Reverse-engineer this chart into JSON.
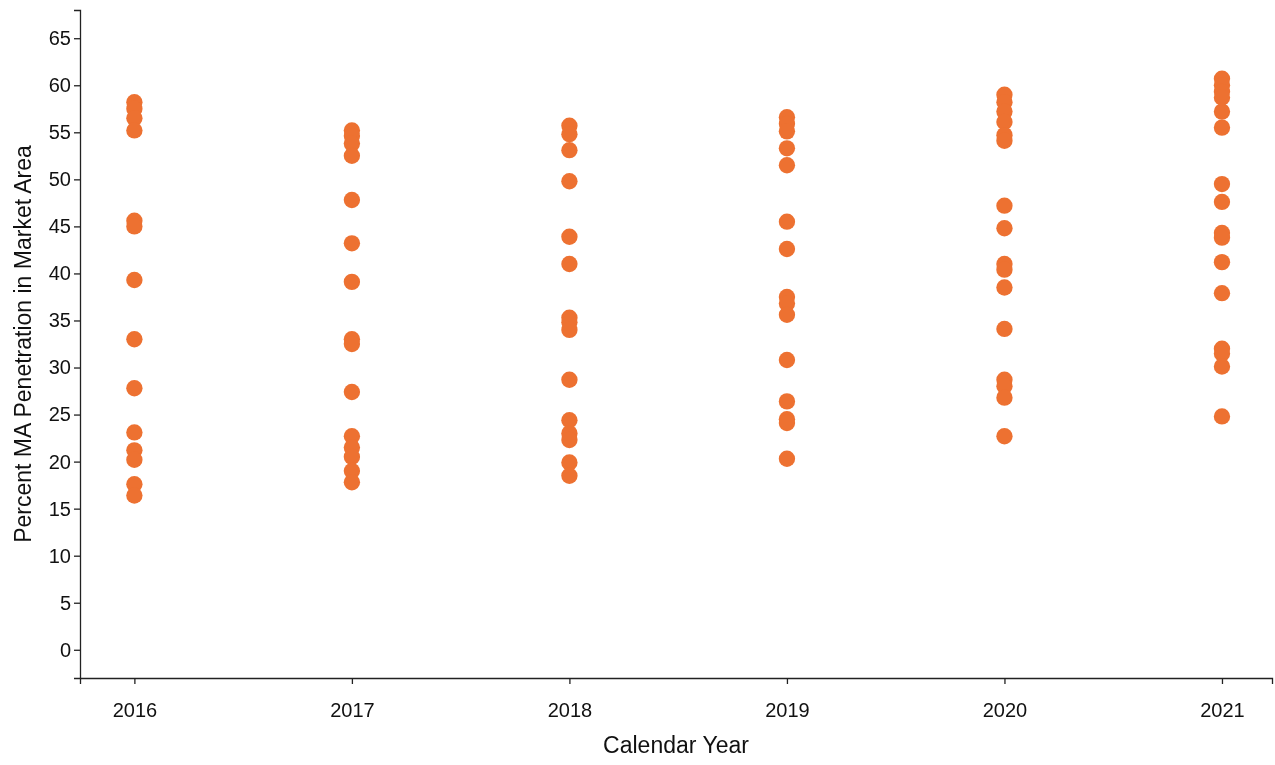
{
  "chart_data": {
    "type": "scatter",
    "xlabel": "Calendar Year",
    "ylabel": "Percent MA Penetration in Market Area",
    "xlim": [
      2015.75,
      2021.23
    ],
    "xticks": [
      2016,
      2017,
      2018,
      2019,
      2020,
      2021
    ],
    "ylim": [
      -3,
      68
    ],
    "yticks": [
      0,
      5,
      10,
      15,
      20,
      25,
      30,
      35,
      40,
      45,
      50,
      55,
      60,
      65
    ],
    "grid": false,
    "marker": "circle",
    "series": [
      {
        "color": "#ed7131",
        "x": [
          2016,
          2016,
          2016,
          2016,
          2016,
          2016,
          2016,
          2016,
          2016,
          2016,
          2016,
          2016,
          2016,
          2016,
          2017,
          2017,
          2017,
          2017,
          2017,
          2017,
          2017,
          2017,
          2017,
          2017,
          2017,
          2017,
          2017,
          2017,
          2017,
          2018,
          2018,
          2018,
          2018,
          2018,
          2018,
          2018,
          2018,
          2018,
          2018,
          2018,
          2018,
          2018,
          2018,
          2018,
          2019,
          2019,
          2019,
          2019,
          2019,
          2019,
          2019,
          2019,
          2019,
          2019,
          2019,
          2019,
          2019,
          2019,
          2019,
          2020,
          2020,
          2020,
          2020,
          2020,
          2020,
          2020,
          2020,
          2020,
          2020,
          2020,
          2020,
          2020,
          2020,
          2020,
          2020,
          2021,
          2021,
          2021,
          2021,
          2021,
          2021,
          2021,
          2021,
          2021,
          2021,
          2021,
          2021,
          2021,
          2021,
          2021,
          2021
        ],
        "values": [
          58.2,
          57.5,
          56.5,
          55.2,
          45.6,
          45.0,
          39.3,
          33.0,
          27.8,
          23.1,
          21.2,
          20.2,
          17.6,
          16.4,
          55.2,
          54.6,
          53.8,
          52.5,
          47.8,
          43.2,
          39.1,
          33.0,
          32.5,
          27.4,
          22.7,
          21.5,
          20.5,
          19.0,
          17.8,
          55.7,
          54.8,
          53.1,
          49.8,
          43.9,
          41.0,
          35.3,
          34.8,
          34.0,
          28.7,
          24.4,
          23.0,
          22.3,
          19.9,
          18.5,
          56.6,
          55.9,
          55.1,
          53.3,
          51.5,
          45.5,
          42.6,
          37.5,
          36.8,
          35.6,
          30.8,
          26.4,
          24.5,
          24.1,
          20.3,
          59.0,
          58.2,
          57.2,
          56.1,
          54.7,
          54.1,
          47.2,
          44.8,
          41.0,
          40.4,
          38.5,
          34.1,
          28.7,
          28.0,
          26.8,
          22.7,
          60.7,
          60.0,
          59.3,
          58.7,
          57.2,
          55.5,
          49.5,
          47.6,
          44.3,
          43.8,
          41.2,
          37.9,
          32.0,
          31.5,
          30.1,
          24.8
        ]
      }
    ]
  }
}
